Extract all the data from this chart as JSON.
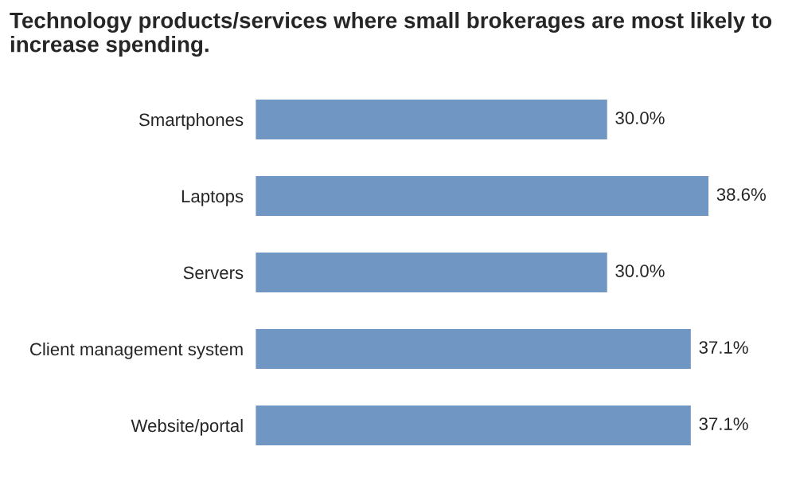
{
  "chart_data": {
    "type": "bar",
    "orientation": "horizontal",
    "title": "Technology products/services where small brokerages are most likely to increase spending.",
    "categories": [
      "Smartphones",
      "Laptops",
      "Servers",
      "Client management system",
      "Website/portal"
    ],
    "values": [
      30.0,
      38.6,
      30.0,
      37.1,
      37.1
    ],
    "value_labels": [
      "30.0%",
      "38.6%",
      "30.0%",
      "37.1%",
      "37.1%"
    ],
    "color": "#7096c4",
    "tick_labels": "y",
    "grid": false,
    "legend": false
  }
}
